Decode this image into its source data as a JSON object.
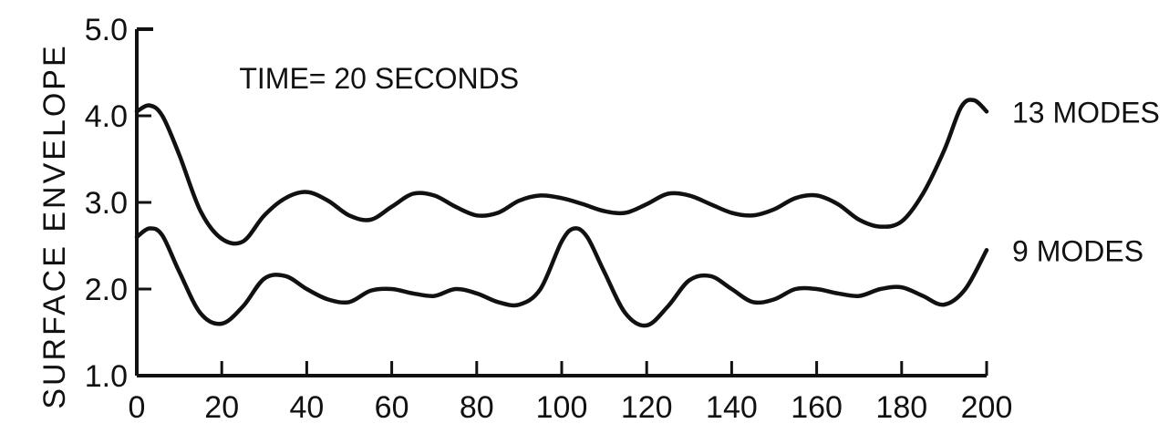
{
  "chart_data": {
    "type": "line",
    "title": "",
    "xlabel": "",
    "ylabel": "SURFACE ENVELOPE",
    "xlim": [
      0,
      200
    ],
    "ylim": [
      1.0,
      5.0
    ],
    "x_ticks": [
      0,
      20,
      40,
      60,
      80,
      100,
      120,
      140,
      160,
      180,
      200
    ],
    "x_tick_labels": [
      "0",
      "20",
      "40",
      "60",
      "80",
      "100",
      "120",
      "140",
      "160",
      "180",
      "200"
    ],
    "y_ticks": [
      1.0,
      2.0,
      3.0,
      4.0,
      5.0
    ],
    "y_tick_labels": [
      "1.0",
      "2.0",
      "3.0",
      "4.0",
      "5.0"
    ],
    "grid": false,
    "annotations": [
      {
        "text": "TIME= 20 SECONDS",
        "x": 42,
        "y": 4.4
      }
    ],
    "series": [
      {
        "name": "13 MODES",
        "color": "#111111",
        "x": [
          0,
          3,
          6,
          10,
          15,
          20,
          25,
          30,
          35,
          40,
          45,
          50,
          55,
          60,
          65,
          70,
          75,
          80,
          85,
          90,
          95,
          100,
          105,
          110,
          115,
          120,
          125,
          130,
          135,
          140,
          145,
          150,
          155,
          160,
          165,
          170,
          175,
          180,
          185,
          190,
          194,
          197,
          200
        ],
        "y": [
          4.05,
          4.12,
          4.0,
          3.55,
          2.9,
          2.58,
          2.55,
          2.85,
          3.05,
          3.12,
          3.02,
          2.85,
          2.8,
          2.95,
          3.1,
          3.08,
          2.95,
          2.85,
          2.88,
          3.02,
          3.08,
          3.05,
          2.98,
          2.9,
          2.88,
          2.98,
          3.1,
          3.08,
          2.98,
          2.88,
          2.85,
          2.92,
          3.05,
          3.08,
          2.98,
          2.8,
          2.72,
          2.78,
          3.1,
          3.6,
          4.1,
          4.18,
          4.05
        ]
      },
      {
        "name": "9 MODES",
        "color": "#111111",
        "x": [
          0,
          3,
          6,
          10,
          15,
          20,
          25,
          30,
          35,
          40,
          45,
          50,
          55,
          60,
          65,
          70,
          75,
          80,
          85,
          90,
          95,
          100,
          103,
          106,
          110,
          115,
          120,
          125,
          130,
          135,
          140,
          145,
          150,
          155,
          160,
          165,
          170,
          175,
          180,
          185,
          190,
          195,
          200
        ],
        "y": [
          2.6,
          2.7,
          2.62,
          2.2,
          1.72,
          1.6,
          1.8,
          2.12,
          2.15,
          2.0,
          1.88,
          1.85,
          1.98,
          2.0,
          1.95,
          1.92,
          2.0,
          1.95,
          1.85,
          1.82,
          2.0,
          2.55,
          2.7,
          2.6,
          2.2,
          1.72,
          1.58,
          1.8,
          2.1,
          2.15,
          2.0,
          1.85,
          1.88,
          2.0,
          2.0,
          1.95,
          1.92,
          2.0,
          2.02,
          1.92,
          1.82,
          2.0,
          2.45
        ]
      }
    ]
  }
}
